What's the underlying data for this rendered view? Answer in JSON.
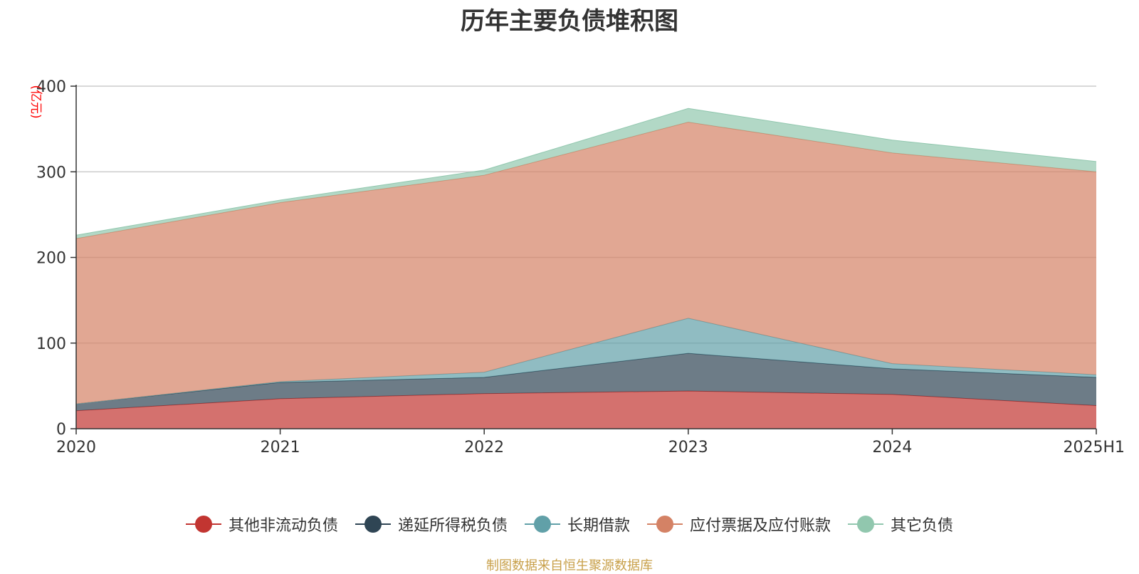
{
  "chart_data": {
    "type": "area",
    "stacked": true,
    "title": "历年主要负债堆积图",
    "unit_label": "(亿元)",
    "categories": [
      "2020",
      "2021",
      "2022",
      "2023",
      "2024",
      "2025H1"
    ],
    "ylim": [
      0,
      400
    ],
    "yticks": [
      0,
      100,
      200,
      300,
      400
    ],
    "grid": true,
    "legend_position": "bottom",
    "series": [
      {
        "name": "其他非流动负债",
        "color": "#c23531",
        "values": [
          21,
          35,
          41,
          44,
          40,
          27
        ]
      },
      {
        "name": "递延所得税负债",
        "color": "#2f4554",
        "values": [
          8,
          19,
          19,
          44,
          30,
          33
        ]
      },
      {
        "name": "长期借款",
        "color": "#61a0a8",
        "values": [
          0,
          1,
          6,
          41,
          6,
          3
        ]
      },
      {
        "name": "应付票据及应付账款",
        "color": "#d48265",
        "values": [
          193,
          209,
          230,
          229,
          246,
          237
        ]
      },
      {
        "name": "其它负债",
        "color": "#91c7ae",
        "values": [
          4,
          3,
          6,
          16,
          15,
          12
        ]
      }
    ],
    "source": "制图数据来自恒生聚源数据库"
  }
}
